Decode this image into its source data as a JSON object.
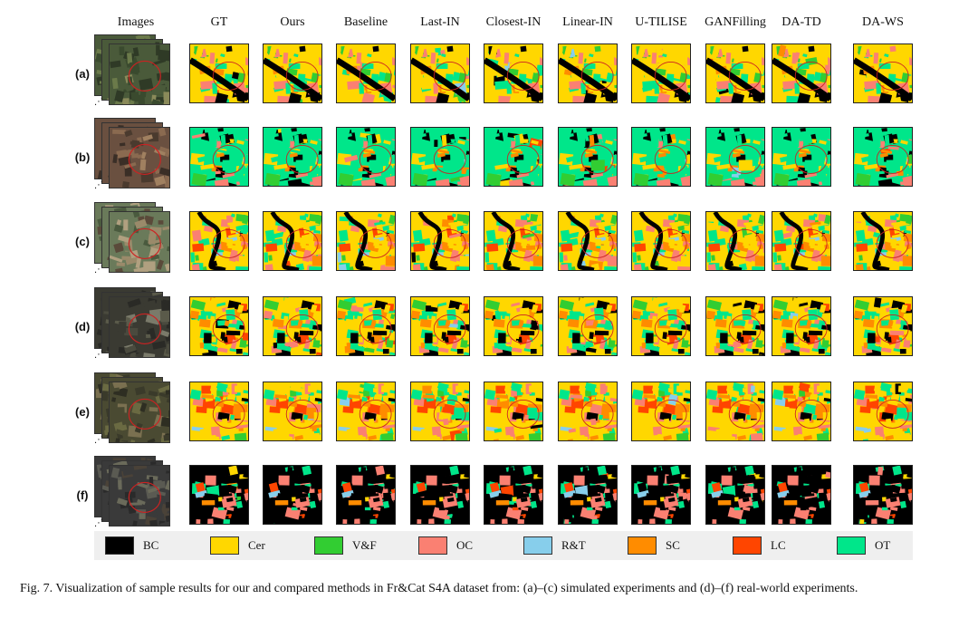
{
  "column_headers": [
    "Images",
    "GT",
    "Ours",
    "Baseline",
    "Last-IN",
    "Closest-IN",
    "Linear-IN",
    "U-TILISE",
    "GANFilling",
    "DA-TD",
    "DA-WS"
  ],
  "rows": [
    {
      "label": "(a)",
      "theme": "satellite-green",
      "dominant": "Cer"
    },
    {
      "label": "(b)",
      "theme": "satellite-brown",
      "dominant": "OT"
    },
    {
      "label": "(c)",
      "theme": "satellite-mixed",
      "dominant": "Cer"
    },
    {
      "label": "(d)",
      "theme": "satellite-dark",
      "dominant": "Cer"
    },
    {
      "label": "(e)",
      "theme": "satellite-olive",
      "dominant": "Cer"
    },
    {
      "label": "(f)",
      "theme": "satellite-dark-urban",
      "dominant": "BC"
    }
  ],
  "legend": [
    {
      "label": "BC",
      "color": "#000000"
    },
    {
      "label": "Cer",
      "color": "#ffd700"
    },
    {
      "label": "V&F",
      "color": "#32cd32"
    },
    {
      "label": "OC",
      "color": "#fa8072"
    },
    {
      "label": "R&T",
      "color": "#87ceeb"
    },
    {
      "label": "SC",
      "color": "#ff8c00"
    },
    {
      "label": "LC",
      "color": "#ff4500"
    },
    {
      "label": "OT",
      "color": "#00e68a"
    }
  ],
  "caption": "Fig. 7.  Visualization of sample results for our and compared methods in Fr&Cat S4A dataset from: (a)–(c) simulated experiments and (d)–(f) real-world experiments.",
  "highlight_color": "#cc2222"
}
